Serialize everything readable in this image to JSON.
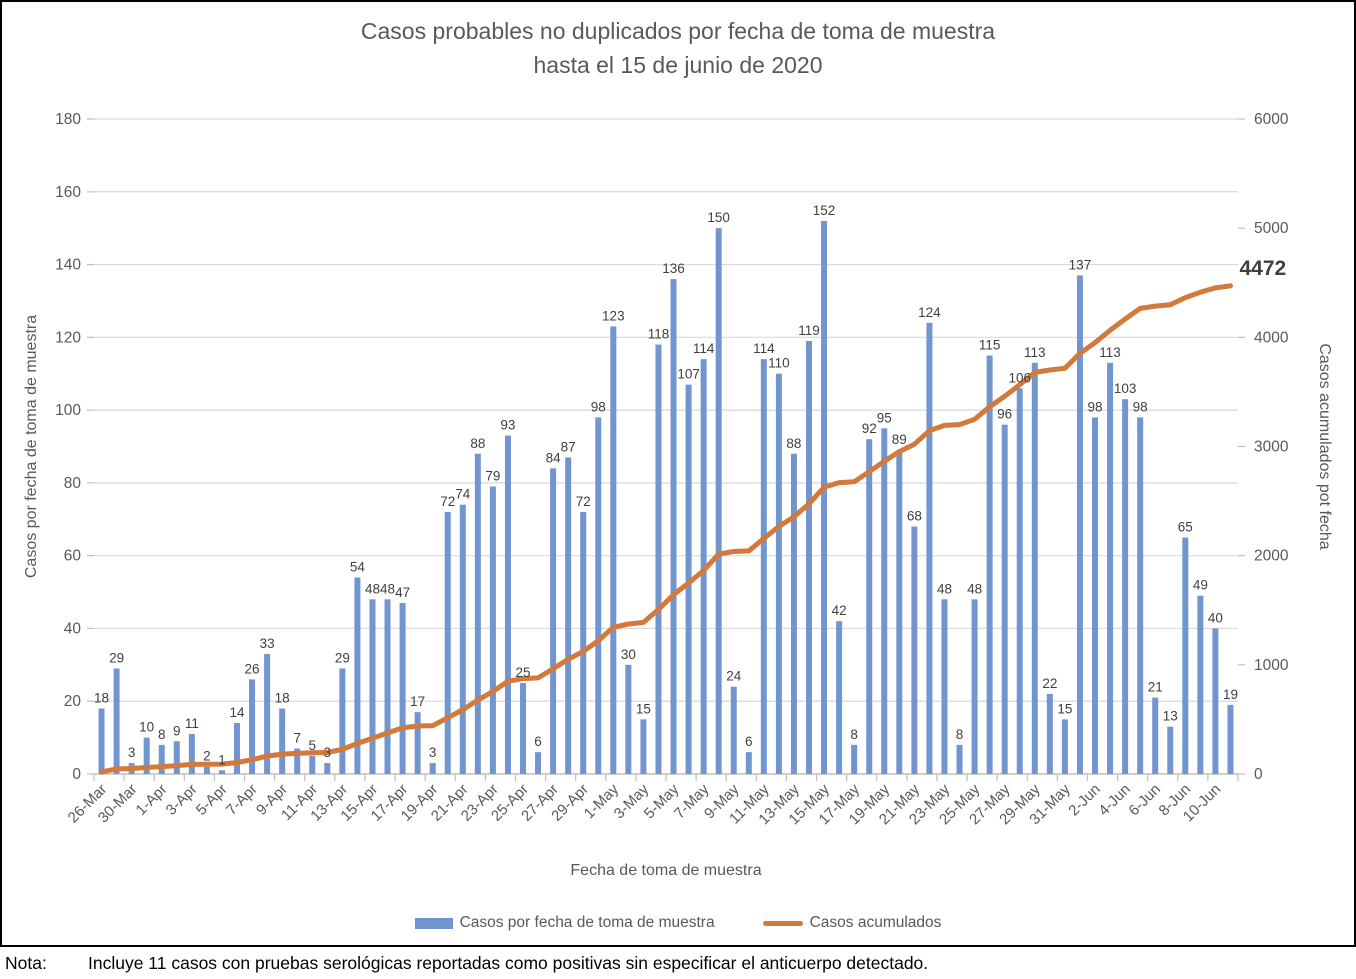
{
  "title": {
    "line1": "Casos probables no duplicados por fecha de toma de muestra",
    "line2": "hasta el 15 de junio de 2020"
  },
  "note": {
    "label": "Nota:",
    "text": "Incluye 11 casos con pruebas serológicas reportadas como positivas sin especificar el anticuerpo detectado."
  },
  "chart_data": {
    "type": "combo-bar-line",
    "xlabel": "Fecha de toma de muestra",
    "x_tick_labels": [
      "26-Mar",
      "30-Mar",
      "1-Apr",
      "3-Apr",
      "5-Apr",
      "7-Apr",
      "9-Apr",
      "11-Apr",
      "13-Apr",
      "15-Apr",
      "17-Apr",
      "19-Apr",
      "21-Apr",
      "23-Apr",
      "25-Apr",
      "27-Apr",
      "29-Apr",
      "1-May",
      "3-May",
      "5-May",
      "7-May",
      "9-May",
      "11-May",
      "13-May",
      "15-May",
      "17-May",
      "19-May",
      "21-May",
      "23-May",
      "25-May",
      "27-May",
      "29-May",
      "31-May",
      "2-Jun",
      "4-Jun",
      "6-Jun",
      "8-Jun",
      "10-Jun"
    ],
    "x_label_every_n_bars": 2,
    "series": [
      {
        "name": "Casos por fecha de toma de muestra",
        "type": "bar",
        "axis": "left",
        "color": "#7195CE",
        "data_labels": true,
        "values": [
          18,
          29,
          3,
          10,
          8,
          9,
          11,
          2,
          1,
          14,
          26,
          33,
          18,
          7,
          5,
          3,
          29,
          54,
          48,
          48,
          47,
          17,
          3,
          72,
          74,
          88,
          79,
          93,
          25,
          6,
          84,
          87,
          72,
          98,
          123,
          30,
          15,
          118,
          136,
          107,
          114,
          150,
          24,
          6,
          114,
          110,
          88,
          119,
          152,
          42,
          8,
          92,
          95,
          89,
          68,
          124,
          48,
          8,
          48,
          115,
          96,
          106,
          113,
          22,
          15,
          137,
          98,
          113,
          103,
          98,
          21,
          13,
          65,
          49,
          40,
          19
        ]
      },
      {
        "name": "Casos acumulados",
        "type": "line",
        "axis": "right",
        "color": "#D2793B",
        "end_label": "4472",
        "values": [
          18,
          47,
          50,
          60,
          68,
          77,
          88,
          90,
          91,
          105,
          131,
          164,
          182,
          189,
          194,
          197,
          226,
          280,
          328,
          376,
          423,
          440,
          443,
          515,
          589,
          677,
          756,
          849,
          874,
          880,
          964,
          1051,
          1123,
          1221,
          1344,
          1374,
          1389,
          1507,
          1643,
          1750,
          1864,
          2014,
          2038,
          2044,
          2158,
          2268,
          2356,
          2475,
          2627,
          2669,
          2677,
          2769,
          2864,
          2953,
          3021,
          3145,
          3193,
          3201,
          3249,
          3364,
          3460,
          3566,
          3679,
          3701,
          3716,
          3853,
          3951,
          4064,
          4167,
          4265,
          4286,
          4299,
          4364,
          4413,
          4453,
          4472
        ]
      }
    ],
    "left_axis": {
      "title": "Casos por fecha de toma de muestra",
      "min": 0,
      "max": 180,
      "ticks": [
        0,
        20,
        40,
        60,
        80,
        100,
        120,
        140,
        160,
        180
      ]
    },
    "right_axis": {
      "title": "Casos acumulados pot fecha",
      "min": 0,
      "max": 6000,
      "ticks": [
        0,
        1000,
        2000,
        3000,
        4000,
        5000,
        6000
      ]
    },
    "legend": [
      {
        "label": "Casos por fecha de toma de muestra",
        "swatch": "bar"
      },
      {
        "label": "Casos acumulados",
        "swatch": "line"
      }
    ],
    "legend_position": "bottom",
    "grid": "horizontal"
  },
  "colors": {
    "bar": "#7195CE",
    "line": "#D2793B",
    "grid": "#D9D9D9",
    "axis_line": "#BFBFBF",
    "tick_text": "#595959",
    "data_label": "#3F3F3F",
    "title_text": "#595959"
  }
}
